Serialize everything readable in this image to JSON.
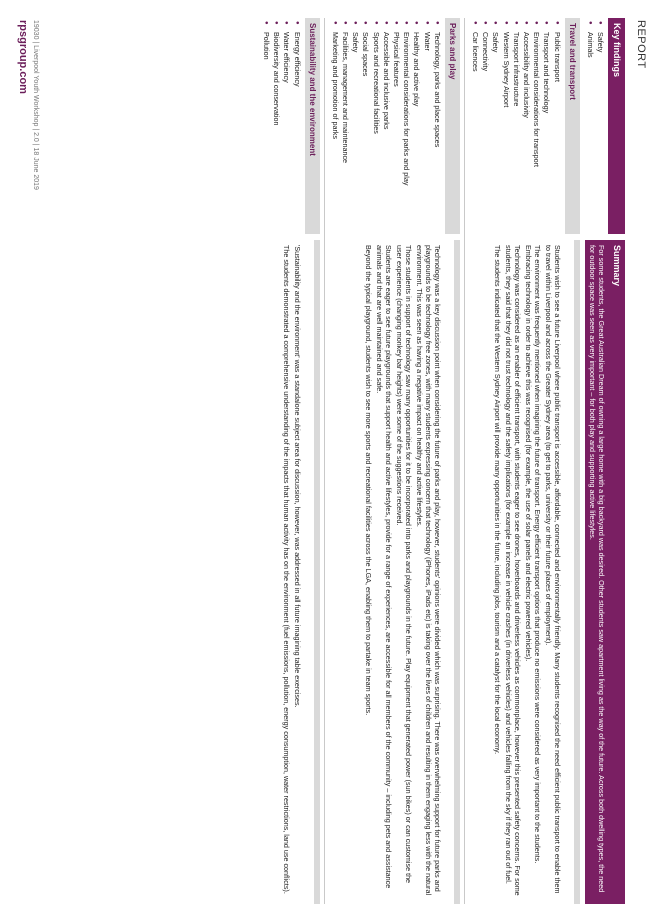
{
  "page": {
    "report_label": "REPORT",
    "footer_meta": "19030 | Liverpool Youth Workshop | 2.0 | 18 June 2019",
    "footer_site": "rpsgroup.com",
    "brand_color": "#7a1f63",
    "accent_color": "#6b1e5a"
  },
  "header": {
    "left": "Key findings",
    "right": "Summary"
  },
  "summary_top": {
    "items": [
      "Safety",
      "Animals"
    ],
    "text": "For some students, the Great Australian Dream of owning a large home with a big backyard was desired. Other students saw apartment living as the way of the future. Across both dwelling types, the need for outdoor space was seen as very important – for both play and supporting active lifestyles."
  },
  "sections": [
    {
      "title": "Travel and transport",
      "items": [
        "Public transport",
        "Transport and technology",
        "Environmental considerations for transport",
        "Accessibility and inclusivity",
        "Transport infrastructure",
        "Western Sydney Airport",
        "Safety",
        "Connectivity",
        "Car licences"
      ],
      "paragraphs": [
        "Students wish to see a future Liverpool where public transport is accessible, affordable, connected and environmentally friendly. Many students recognised the need efficient public transport to enable them to travel within Liverpool and across the Greater Sydney area (to get to parks, university or their future places of employment).",
        "The environment was frequently mentioned when imagining the future of transport. Energy efficient transport options that produce no emissions were considered as very important to the students. Embracing technology in order to achieve this was recognised (for example, the use of solar panels and electric powered vehicles).",
        "Technology was considered as an enabler of efficient transport, with students eager to see drones, hoverboards and driverless vehicles as commonplace, however this presented safety concerns. For some students, they said that they did not trust technology and the safety implications (for example an increase in vehicle crashes (in driverless vehicles) and vehicles falling from the sky if they ran out of fuel.",
        "The students indicated that the Western Sydney Airport will provide many opportunities in the future, including jobs, tourism and a catalyst for the local economy."
      ]
    },
    {
      "title": "Parks and play",
      "items": [
        "Technology, parks and place spaces",
        "Water",
        "Healthy and active play",
        "Environmental considerations for parks and play",
        "Physical features",
        "Accessible and inclusive parks",
        "Sports and recreational facilities",
        "Social spaces",
        "Safety",
        "Facilities, management and maintenance",
        "Marketing and promotion of parks"
      ],
      "paragraphs": [
        "Technology was a key discussion point when considering the future of parks and play, however, students' opinions were divided which was surprising. There was overwhelming support for future parks and playgrounds to be technology free zones, with many students expressing concern that technology (iPhones, iPads etc) is taking over the lives of children and resulting in them engaging less with the natural environment. This was seen as having a negative impact on healthy and active lifestyles.",
        "Those students in support of technology saw many opportunities for it to be incorporated into parks and playgrounds in the future. Play equipment that generated power (sun bikes) or can customise the user experience (changing monkey bar heights) were some of the suggestions received.",
        "Students are eager to see future playgrounds that support health and active lifestyles, provide for a range of experiences, are accessible for all members of the community – including pets and assistance animals and that are well maintained and safe.",
        "Beyond the typical playground, students wish to see more sports and recreational facilities across the LGA, enabling them to partake in team sports."
      ]
    },
    {
      "title": "Sustainability and the environment",
      "items": [
        "Energy efficiency",
        "Water efficiency",
        "Biodiversity and conservation",
        "Pollution"
      ],
      "paragraphs": [
        "'Sustainability and the environment' was a standalone subject area for discussion, however, was addressed in all future imagining table exercises.",
        "The students demonstrated a comprehensive understanding of the impacts that human activity has on the environment (fuel emissions, pollution, energy consumption, water restrictions, land use conflicts)."
      ]
    }
  ]
}
